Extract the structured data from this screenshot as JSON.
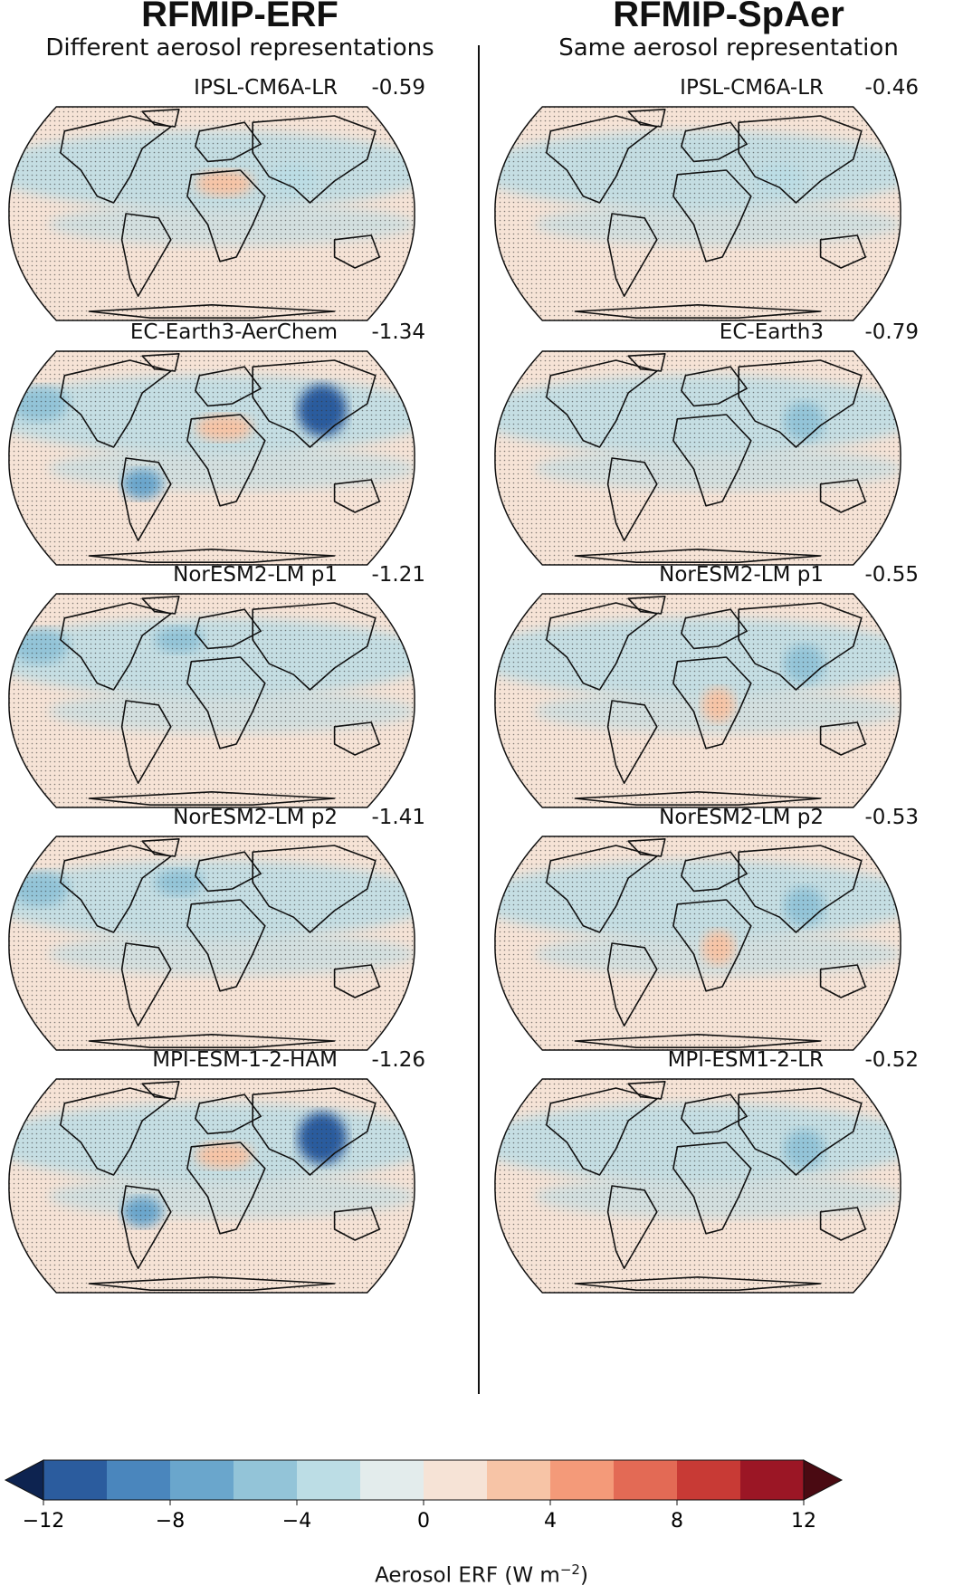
{
  "columns": [
    {
      "title": "RFMIP-ERF",
      "subtitle": "Different aerosol representations",
      "panels": [
        {
          "model": "IPSL-CM6A-LR",
          "value": "-0.59",
          "intensity": 0.4,
          "hotspots": [
            "sahara-warm",
            "asia-weak"
          ]
        },
        {
          "model": "EC-Earth3-AerChem",
          "value": "-1.34",
          "intensity": 1.0,
          "hotspots": [
            "sahara-warm",
            "east-asia-strong",
            "amazon",
            "pacific-north"
          ]
        },
        {
          "model": "NorESM2-LM p1",
          "value": "-1.21",
          "intensity": 0.7,
          "hotspots": [
            "pacific-north",
            "atlantic-north"
          ]
        },
        {
          "model": "NorESM2-LM p2",
          "value": "-1.41",
          "intensity": 0.75,
          "hotspots": [
            "pacific-north",
            "atlantic-north"
          ]
        },
        {
          "model": "MPI-ESM-1-2-HAM",
          "value": "-1.26",
          "intensity": 0.9,
          "hotspots": [
            "sahara-warm",
            "east-asia-strong",
            "amazon"
          ]
        }
      ]
    },
    {
      "title": "RFMIP-SpAer",
      "subtitle": "Same aerosol representation",
      "panels": [
        {
          "model": "IPSL-CM6A-LR",
          "value": "-0.46",
          "intensity": 0.35,
          "hotspots": [
            "asia-weak"
          ]
        },
        {
          "model": "EC-Earth3",
          "value": "-0.79",
          "intensity": 0.55,
          "hotspots": [
            "east-asia-mid"
          ]
        },
        {
          "model": "NorESM2-LM  p1",
          "value": "-0.55",
          "intensity": 0.4,
          "hotspots": [
            "africa-warm",
            "east-asia-mid"
          ]
        },
        {
          "model": "NorESM2-LM  p2",
          "value": "-0.53",
          "intensity": 0.4,
          "hotspots": [
            "africa-warm",
            "east-asia-mid"
          ]
        },
        {
          "model": "MPI-ESM1-2-LR",
          "value": "-0.52",
          "intensity": 0.4,
          "hotspots": [
            "east-asia-mid"
          ]
        }
      ]
    }
  ],
  "colorbar": {
    "label": "Aerosol ERF (W m",
    "label_sup": "−2",
    "label_close": ")",
    "min": -12,
    "max": 12,
    "boundaries": [
      -12,
      -10,
      -8,
      -6,
      -4,
      -2,
      0,
      2,
      4,
      6,
      8,
      10,
      12
    ],
    "ticks": [
      "−12",
      "−8",
      "−4",
      "0",
      "4",
      "8",
      "12"
    ],
    "tick_values": [
      -12,
      -8,
      -4,
      0,
      4,
      8,
      12
    ],
    "colors": [
      "#2b5c9e",
      "#4a86bd",
      "#6aa6cc",
      "#93c4d8",
      "#bcdde5",
      "#e3ecec",
      "#f6e3d6",
      "#f7c4a6",
      "#f49a79",
      "#e36a55",
      "#c83a35",
      "#9b1625"
    ],
    "under_color": "#0d2350",
    "over_color": "#4a0a12"
  }
}
